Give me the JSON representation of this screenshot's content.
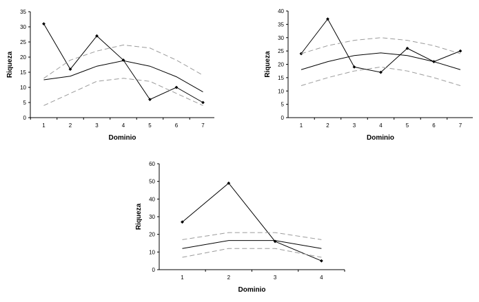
{
  "chart_data": [
    {
      "type": "line",
      "xlabel": "Dominio",
      "ylabel": "Riqueza",
      "x": [
        1,
        2,
        3,
        4,
        5,
        6,
        7
      ],
      "ylim": [
        0,
        35
      ],
      "yticks": [
        0,
        5,
        10,
        15,
        20,
        25,
        30,
        35
      ],
      "grid": false,
      "legend": "none",
      "series": [
        {
          "role": "observed",
          "style": "solid-markers",
          "values": [
            31,
            16,
            27,
            19,
            6,
            10,
            5
          ]
        },
        {
          "role": "expected",
          "style": "solid",
          "values": [
            12.5,
            13.7,
            17,
            18.8,
            17,
            13.5,
            8.5
          ]
        },
        {
          "role": "upper-bound",
          "style": "dashed",
          "values": [
            13,
            19,
            22,
            24,
            23,
            19,
            14
          ]
        },
        {
          "role": "lower-bound",
          "style": "dashed",
          "values": [
            4,
            8,
            12,
            13,
            12,
            8,
            4
          ]
        }
      ]
    },
    {
      "type": "line",
      "xlabel": "Dominio",
      "ylabel": "Riqueza",
      "x": [
        1,
        2,
        3,
        4,
        5,
        6,
        7
      ],
      "ylim": [
        0,
        40
      ],
      "yticks": [
        0,
        5,
        10,
        15,
        20,
        25,
        30,
        35,
        40
      ],
      "grid": false,
      "legend": "none",
      "series": [
        {
          "role": "observed",
          "style": "solid-markers",
          "values": [
            24,
            37,
            19,
            17,
            26,
            21,
            25
          ]
        },
        {
          "role": "expected",
          "style": "solid",
          "values": [
            18,
            21,
            23.3,
            24.3,
            23.3,
            21,
            18
          ]
        },
        {
          "role": "upper-bound",
          "style": "dashed",
          "values": [
            24,
            27,
            29,
            30,
            29,
            27,
            24
          ]
        },
        {
          "role": "lower-bound",
          "style": "dashed",
          "values": [
            12,
            15,
            17.5,
            19,
            17.5,
            15,
            12
          ]
        }
      ]
    },
    {
      "type": "line",
      "xlabel": "Dominio",
      "ylabel": "Riqueza",
      "x": [
        1,
        2,
        3,
        4
      ],
      "ylim": [
        0,
        60
      ],
      "yticks": [
        0,
        10,
        20,
        30,
        40,
        50,
        60
      ],
      "grid": false,
      "legend": "none",
      "series": [
        {
          "role": "observed",
          "style": "solid-markers",
          "values": [
            27,
            49,
            16,
            5
          ]
        },
        {
          "role": "expected",
          "style": "solid",
          "values": [
            12,
            16.5,
            16.5,
            12
          ]
        },
        {
          "role": "upper-bound",
          "style": "dashed",
          "values": [
            17,
            21,
            21,
            17
          ]
        },
        {
          "role": "lower-bound",
          "style": "dashed",
          "values": [
            7,
            12,
            12,
            7
          ]
        }
      ]
    }
  ],
  "colors": {
    "observed": "#000000",
    "expected": "#000000",
    "bounds": "#9a9a9a",
    "axis": "#000000"
  }
}
